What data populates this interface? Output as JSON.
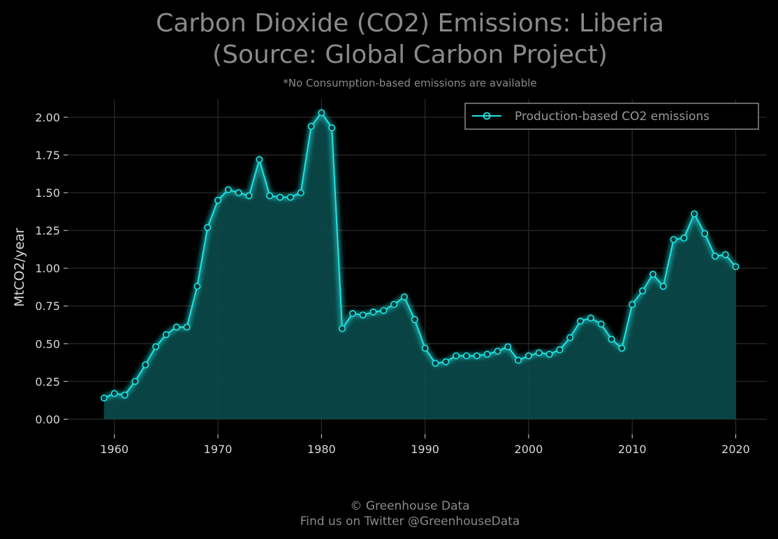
{
  "chart_data": {
    "type": "area",
    "title_line1": "Carbon Dioxide (CO2) Emissions: Liberia",
    "title_line2": "(Source: Global Carbon Project)",
    "subtitle": "*No Consumption-based emissions are available",
    "xlabel": "",
    "ylabel": "MtCO2/year",
    "xlim": [
      1955.5,
      2023
    ],
    "ylim": [
      -0.1,
      2.12
    ],
    "x_ticks": [
      1960,
      1970,
      1980,
      1990,
      2000,
      2010,
      2020
    ],
    "y_ticks": [
      0.0,
      0.25,
      0.5,
      0.75,
      1.0,
      1.25,
      1.5,
      1.75,
      2.0
    ],
    "y_tick_labels": [
      "0.00",
      "0.25",
      "0.50",
      "0.75",
      "1.00",
      "1.25",
      "1.50",
      "1.75",
      "2.00"
    ],
    "grid": true,
    "legend_position": "top-right",
    "series": [
      {
        "name": "Production-based CO2 emissions",
        "color": "#1ee3e0",
        "marker": "circle",
        "x": [
          1959,
          1960,
          1961,
          1962,
          1963,
          1964,
          1965,
          1966,
          1967,
          1968,
          1969,
          1970,
          1971,
          1972,
          1973,
          1974,
          1975,
          1976,
          1977,
          1978,
          1979,
          1980,
          1981,
          1982,
          1983,
          1984,
          1985,
          1986,
          1987,
          1988,
          1989,
          1990,
          1991,
          1992,
          1993,
          1994,
          1995,
          1996,
          1997,
          1998,
          1999,
          2000,
          2001,
          2002,
          2003,
          2004,
          2005,
          2006,
          2007,
          2008,
          2009,
          2010,
          2011,
          2012,
          2013,
          2014,
          2015,
          2016,
          2017,
          2018,
          2019,
          2020
        ],
        "y": [
          0.14,
          0.17,
          0.16,
          0.25,
          0.36,
          0.48,
          0.56,
          0.61,
          0.61,
          0.88,
          1.27,
          1.45,
          1.52,
          1.5,
          1.48,
          1.72,
          1.48,
          1.47,
          1.47,
          1.5,
          1.94,
          2.03,
          1.93,
          0.6,
          0.7,
          0.69,
          0.71,
          0.72,
          0.76,
          0.81,
          0.66,
          0.47,
          0.37,
          0.38,
          0.42,
          0.42,
          0.42,
          0.43,
          0.45,
          0.48,
          0.39,
          0.42,
          0.44,
          0.43,
          0.46,
          0.54,
          0.65,
          0.67,
          0.63,
          0.53,
          0.47,
          0.76,
          0.85,
          0.96,
          0.88,
          1.19,
          1.2,
          1.36,
          1.23,
          1.08,
          1.09,
          1.01
        ]
      }
    ]
  },
  "footer": {
    "line1": "© Greenhouse Data",
    "line2": "Find us on Twitter @GreenhouseData"
  },
  "colors": {
    "background": "#000000",
    "grid": "#2c2c2c",
    "line": "#1ee3e0",
    "fill": "#0a4a4a",
    "text": "#d8d8d8",
    "title": "#8a8a8a"
  }
}
